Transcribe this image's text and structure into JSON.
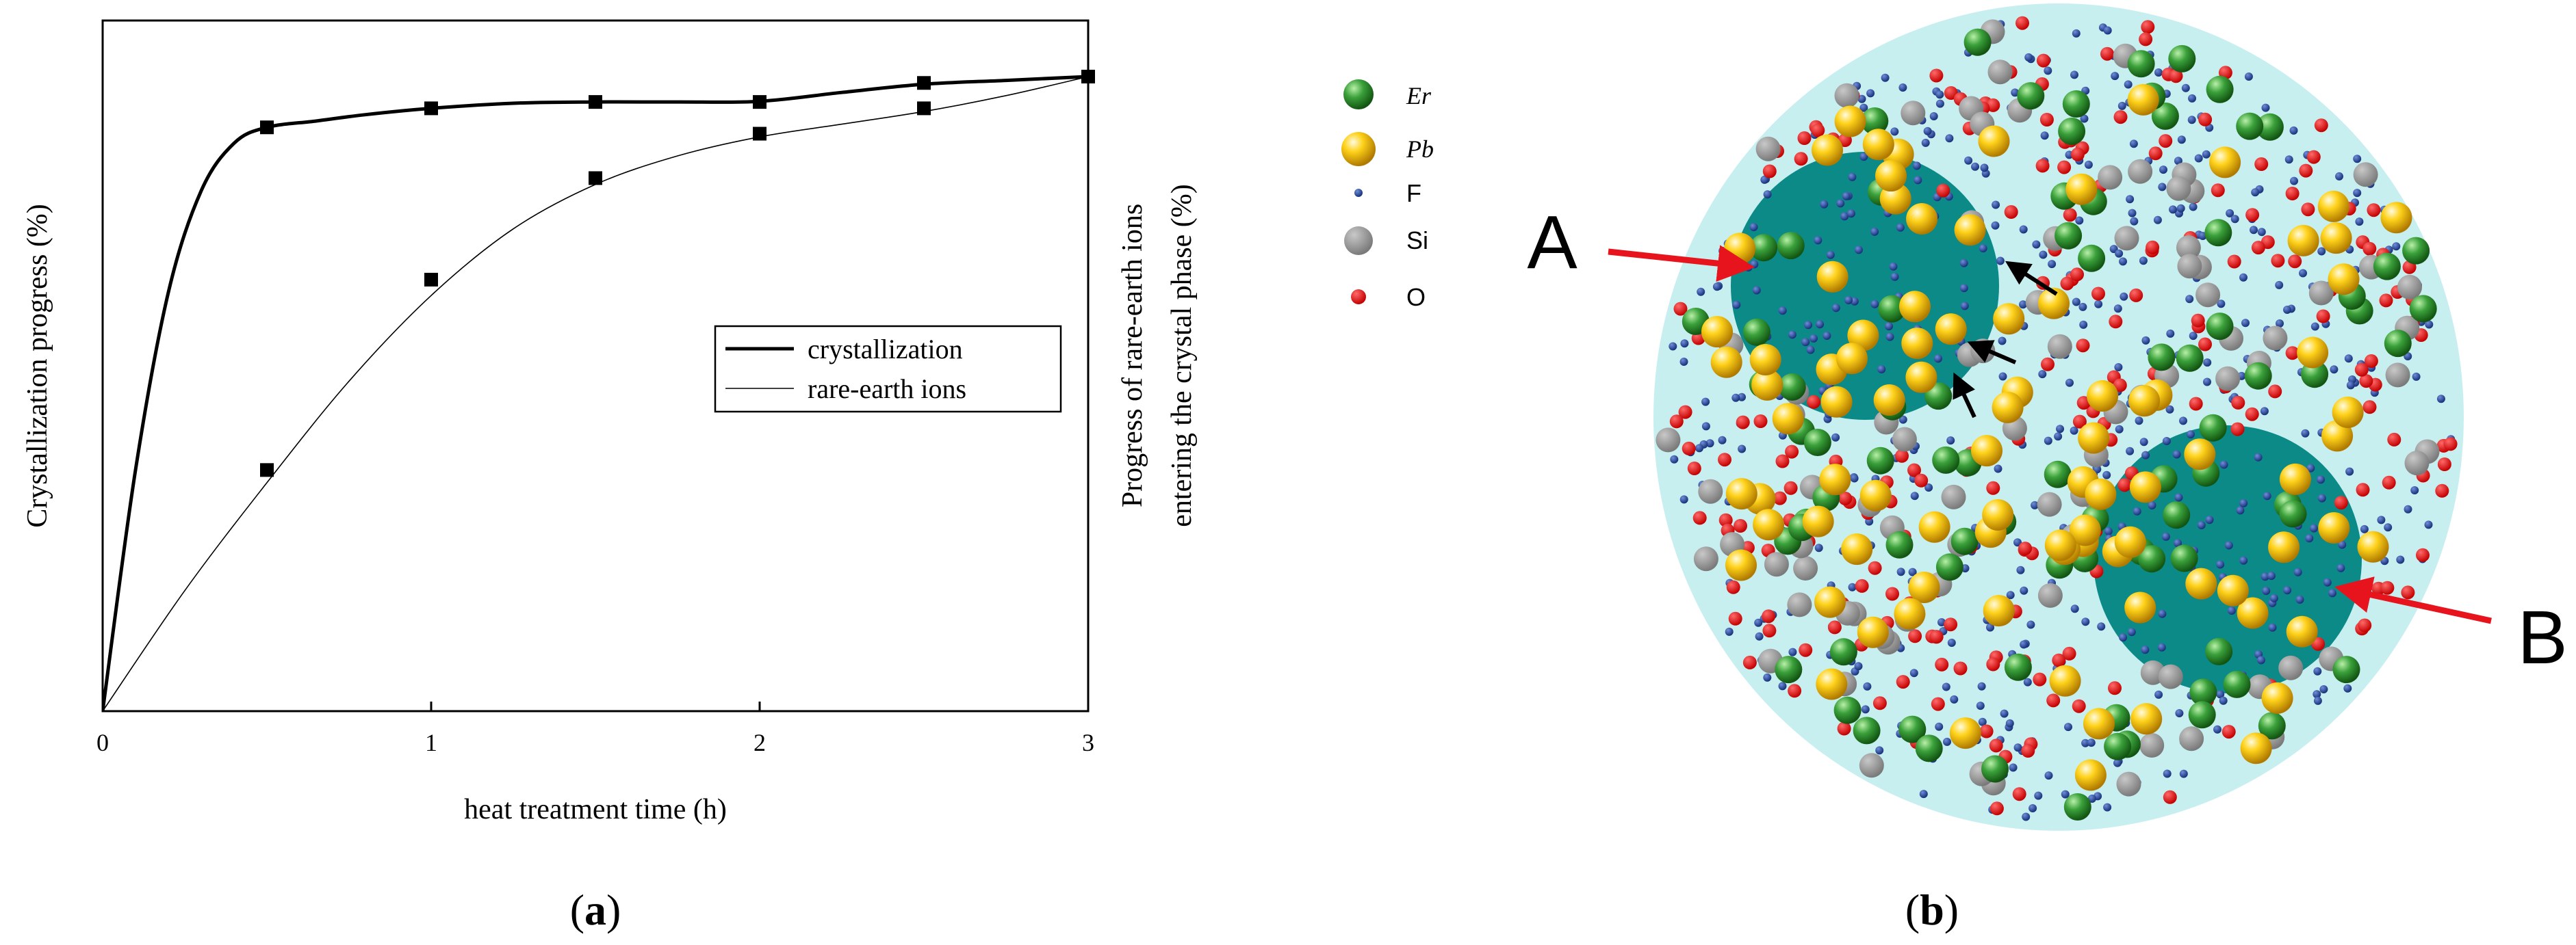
{
  "chart_data": {
    "type": "line",
    "panel_label": "(a)",
    "panel_label_parts": {
      "open": "(",
      "letter": "a",
      "close": ")"
    },
    "xlabel": "heat treatment time (h)",
    "ylabel_left": "Crystallization progress (%)",
    "ylabel_right_line1": "Progress of rare-earth ions",
    "ylabel_right_line2": "entering the crystal phase  (%)",
    "xlim": [
      0,
      3
    ],
    "ylim": [
      0,
      100
    ],
    "xticks": [
      "0",
      "1",
      "2",
      "3"
    ],
    "grid": false,
    "legend_position": "center-right",
    "series": [
      {
        "name": "crystallization",
        "style": "thick",
        "x": [
          0,
          0.5,
          1,
          1.5,
          2,
          2.5,
          3
        ],
        "y": [
          0,
          92,
          95,
          96,
          96,
          99,
          100
        ],
        "curve": [
          [
            0,
            0
          ],
          [
            0.1,
            38
          ],
          [
            0.2,
            66
          ],
          [
            0.3,
            82
          ],
          [
            0.4,
            89.5
          ],
          [
            0.5,
            92
          ],
          [
            0.65,
            93
          ],
          [
            0.8,
            94
          ],
          [
            1,
            95
          ],
          [
            1.25,
            95.8
          ],
          [
            1.5,
            96
          ],
          [
            1.75,
            96
          ],
          [
            2,
            96.1
          ],
          [
            2.25,
            97.5
          ],
          [
            2.5,
            98.8
          ],
          [
            2.75,
            99.4
          ],
          [
            3,
            100
          ]
        ]
      },
      {
        "name": "rare-earth ions",
        "style": "thin",
        "x": [
          0,
          0.5,
          1,
          1.5,
          2,
          2.5,
          3
        ],
        "y": [
          0,
          38,
          68,
          84,
          91,
          95,
          100
        ],
        "curve": [
          [
            0,
            0
          ],
          [
            0.25,
            19
          ],
          [
            0.5,
            36
          ],
          [
            0.75,
            52
          ],
          [
            1,
            65.5
          ],
          [
            1.25,
            76
          ],
          [
            1.5,
            83
          ],
          [
            1.75,
            87.5
          ],
          [
            2,
            90.5
          ],
          [
            2.25,
            92.5
          ],
          [
            2.5,
            94.5
          ],
          [
            2.75,
            97
          ],
          [
            3,
            100
          ]
        ]
      }
    ]
  },
  "diagram": {
    "panel_label": "(b)",
    "panel_label_parts": {
      "open": "(",
      "letter": "b",
      "close": ")"
    },
    "legend": [
      {
        "label": "Er",
        "italic": true
      },
      {
        "label": "Pb",
        "italic": true
      },
      {
        "label": "F",
        "italic": false
      },
      {
        "label": "Si",
        "italic": false
      },
      {
        "label": "O",
        "italic": false
      }
    ],
    "region_labels": {
      "a": "A",
      "b": "B"
    },
    "colors": {
      "er": "#2e8b2e",
      "pb": "#f2b705",
      "f": "#1f3f8f",
      "si": "#8c8c8c",
      "o": "#dd1111",
      "glass": "#c8eff0",
      "crystal": "#0b8a88",
      "arrow_red": "#e8141d",
      "arrow_black": "#000000"
    }
  }
}
